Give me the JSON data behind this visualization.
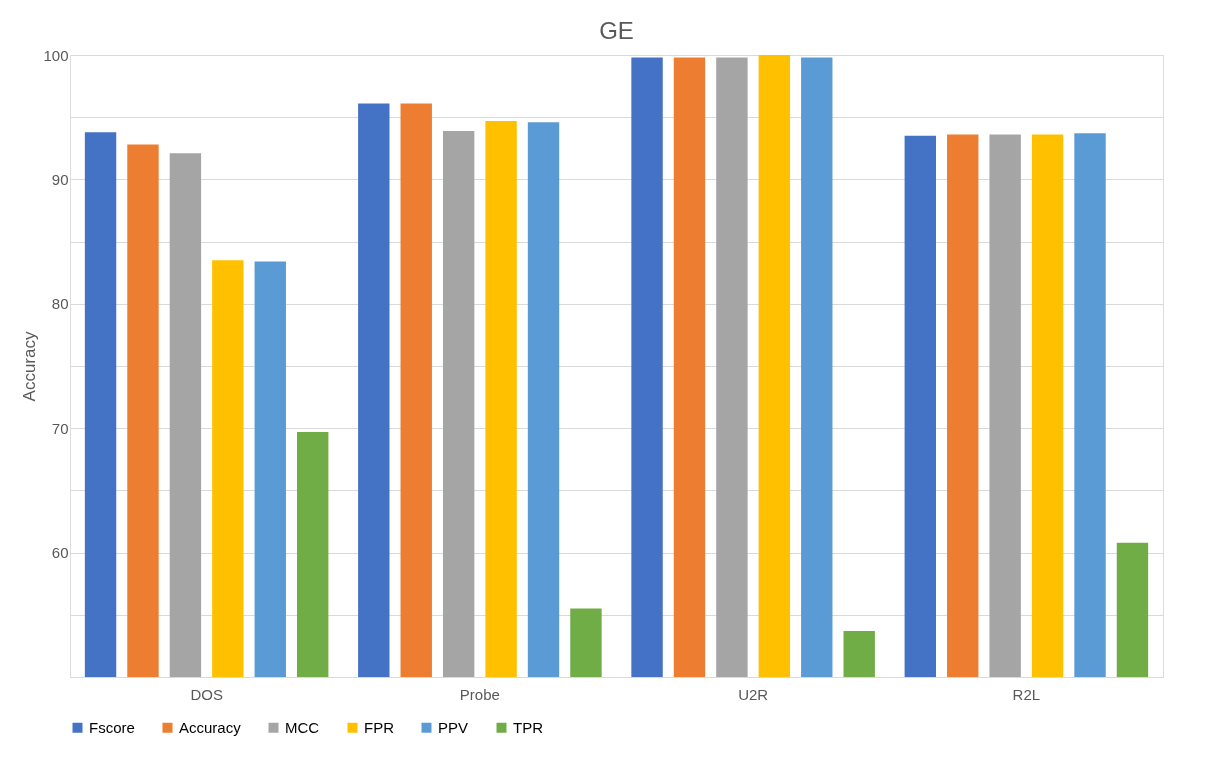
{
  "chart_data": {
    "type": "bar",
    "title": "GE",
    "ylabel": "Accuracy",
    "categories": [
      "DOS",
      "Probe",
      "U2R",
      "R2L"
    ],
    "series": [
      {
        "name": "Fscore",
        "color": "#4472c4",
        "values": [
          93.8,
          96.1,
          99.8,
          93.5
        ]
      },
      {
        "name": "Accuracy",
        "color": "#ed7d31",
        "values": [
          92.8,
          96.1,
          99.8,
          93.6
        ]
      },
      {
        "name": "MCC",
        "color": "#a5a5a5",
        "values": [
          92.1,
          93.9,
          99.8,
          93.6
        ]
      },
      {
        "name": "FPR",
        "color": "#ffc000",
        "values": [
          83.5,
          94.7,
          100,
          93.6
        ]
      },
      {
        "name": "PPV",
        "color": "#5b9bd5",
        "values": [
          83.4,
          94.6,
          99.8,
          93.7
        ]
      },
      {
        "name": "TPR",
        "color": "#70ad47",
        "values": [
          69.7,
          55.5,
          53.7,
          60.8
        ]
      }
    ],
    "ylim": [
      50,
      100
    ],
    "yticks": [
      {
        "value": 50,
        "label": null
      },
      {
        "value": 55,
        "label": null
      },
      60,
      {
        "value": 65,
        "label": null
      },
      70,
      {
        "value": 75,
        "label": null
      },
      80,
      {
        "value": 85,
        "label": null
      },
      90,
      {
        "value": 95,
        "label": null
      },
      100
    ],
    "grid": "y",
    "legend": "bottom"
  }
}
